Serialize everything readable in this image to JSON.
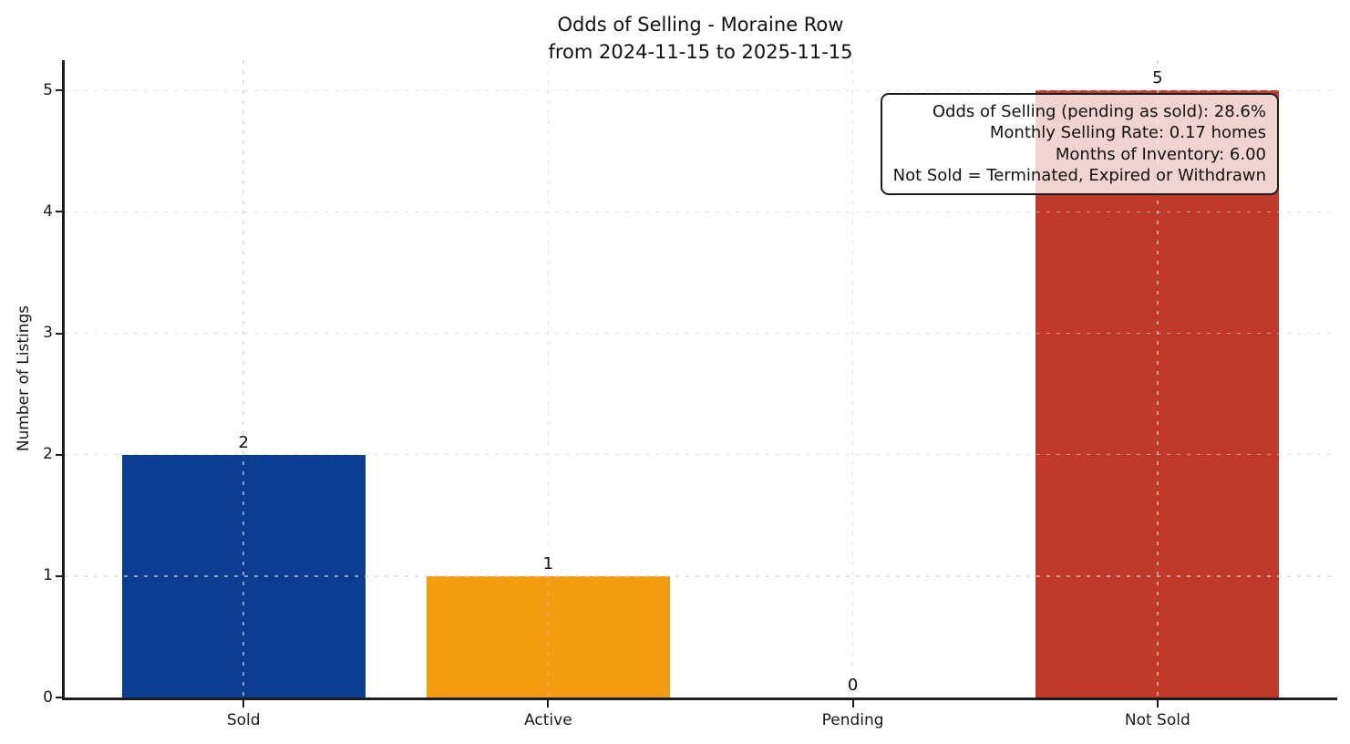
{
  "chart_data": {
    "type": "bar",
    "title": "Odds of Selling - Moraine Row",
    "subtitle": "from 2024-11-15 to 2025-11-15",
    "categories": [
      "Sold",
      "Active",
      "Pending",
      "Not Sold"
    ],
    "values": [
      2,
      1,
      0,
      5
    ],
    "bar_value_labels": [
      "2",
      "1",
      "0",
      "5"
    ],
    "bar_colors": [
      "#0d3d91",
      "#f39c12",
      null,
      "#c0392b"
    ],
    "xlabel": "",
    "ylabel": "Number of Listings",
    "ylim": [
      0,
      5.25
    ],
    "yticks": [
      0,
      1,
      2,
      3,
      4,
      5
    ],
    "grid": {
      "style": "dashed",
      "axes": "both"
    },
    "legend": null,
    "annotation": {
      "lines": [
        "Odds of Selling (pending as sold): 28.6%",
        "Monthly Selling Rate: 0.17 homes",
        "Months of Inventory: 6.00",
        "Not Sold = Terminated, Expired or Withdrawn"
      ]
    },
    "colors": {
      "axis": "#1c1c1c",
      "grid": "#d0d0d0",
      "background": "#ffffff",
      "sold_bar": "#0d3d91",
      "active_bar": "#f39c12",
      "not_sold_bar": "#c0392b"
    }
  }
}
